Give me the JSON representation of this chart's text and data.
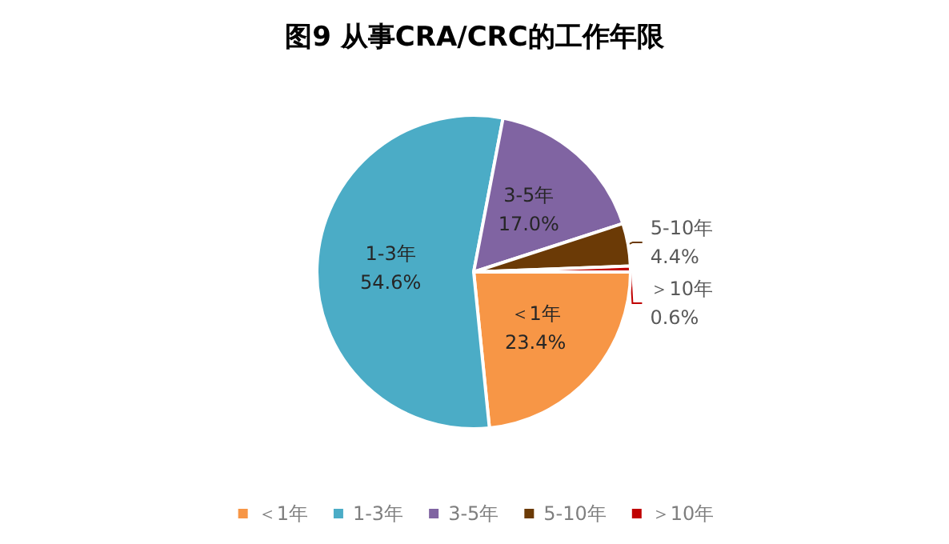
{
  "chart_data": {
    "type": "pie",
    "title": "图9 从事CRA/CRC的工作年限",
    "categories": [
      "＜1年",
      "1-3年",
      "3-5年",
      "5-10年",
      "＞10年"
    ],
    "values": [
      23.4,
      54.6,
      17.0,
      4.4,
      0.6
    ],
    "colors": [
      "#f79646",
      "#4bacc6",
      "#8064a2",
      "#6b3a06",
      "#c00000"
    ],
    "value_labels": [
      "23.4%",
      "54.6%",
      "17.0%",
      "4.4%",
      "0.6%"
    ],
    "legend": "bottom"
  }
}
